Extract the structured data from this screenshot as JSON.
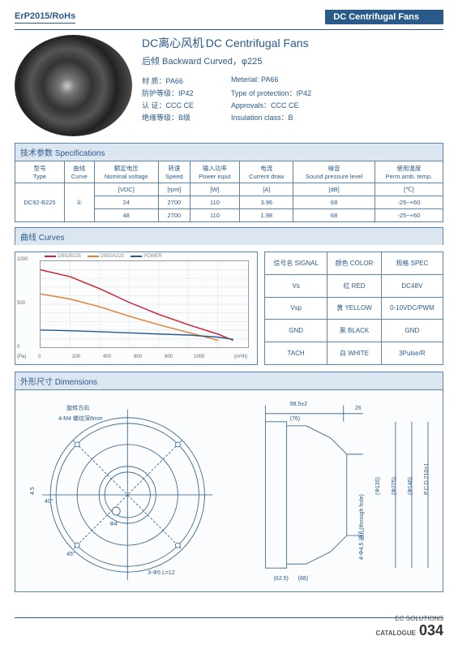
{
  "header": {
    "left": "ErP2015/RoHs",
    "right": "DC Centrifugal Fans"
  },
  "title": {
    "cn": "DC离心风机",
    "en": "DC Centrifugal Fans",
    "sub": "后倾 Backward Curved，φ225"
  },
  "props": {
    "rows": [
      {
        "cn": "材 质：PA66",
        "en": "Meterial: PA66"
      },
      {
        "cn": "防护等级：IP42",
        "en": "Type of protection：IP42"
      },
      {
        "cn": "认 证：CCC CE",
        "en": "Approvals：CCC CE"
      },
      {
        "cn": "绝缘等级：B级",
        "en": "Insulation class：B"
      }
    ]
  },
  "specsHeader": "技术参数 Specifications",
  "specCols": [
    {
      "l1": "型号",
      "l2": "Type"
    },
    {
      "l1": "曲线",
      "l2": "Curve"
    },
    {
      "l1": "额定电压",
      "l2": "Nominal voltage"
    },
    {
      "l1": "转速",
      "l2": "Speed"
    },
    {
      "l1": "输入功率",
      "l2": "Power input"
    },
    {
      "l1": "电流",
      "l2": "Current draw"
    },
    {
      "l1": "噪音",
      "l2": "Sound pressure level"
    },
    {
      "l1": "使用温度",
      "l2": "Perm.amb. temp."
    }
  ],
  "specUnits": [
    "[VDC]",
    "[rpm]",
    "[W]",
    "[A]",
    "[dB]",
    "[℃]"
  ],
  "specModel": "DC92-B225",
  "specCurve": "①",
  "specRows": [
    [
      "24",
      "2700",
      "110",
      "3.96",
      "68",
      "-25~+60"
    ],
    [
      "48",
      "2700",
      "110",
      "1.98",
      "68",
      "-25~+60"
    ]
  ],
  "curvesHeader": "曲线 Curves",
  "chart": {
    "type": "line",
    "xlim": [
      0,
      1400
    ],
    "ylim_left": [
      0,
      1000
    ],
    "ylim_right": [
      0,
      600
    ],
    "xtick_step": 200,
    "ytick_step": 100,
    "x_label": "(m³/h)",
    "y_label_left": "(Pa)",
    "y_label_right": "(W)",
    "background_color": "#fafcfe",
    "grid_color": "#dddddd",
    "series": [
      {
        "name": "DB92B225",
        "color": "#d02030",
        "x": [
          0,
          200,
          400,
          600,
          800,
          1000,
          1200,
          1300
        ],
        "y": [
          900,
          820,
          680,
          520,
          380,
          260,
          150,
          80
        ]
      },
      {
        "name": "DB92A220",
        "color": "#e08030",
        "x": [
          0,
          200,
          400,
          600,
          800,
          1000,
          1200
        ],
        "y": [
          620,
          560,
          470,
          360,
          260,
          170,
          80
        ]
      },
      {
        "name": "POWER",
        "color": "#2a5a8a",
        "x": [
          0,
          200,
          400,
          600,
          800,
          1000,
          1200,
          1300
        ],
        "y": [
          120,
          115,
          108,
          100,
          92,
          85,
          70,
          55
        ]
      }
    ]
  },
  "signal": {
    "cols": [
      "信号名 SIGNAL",
      "颜色 COLOR",
      "规格 SPEC"
    ],
    "rows": [
      [
        "Vs",
        "红 RED",
        "DC48V"
      ],
      [
        "Vsp",
        "黄 YELLOW",
        "0-10VDC/PWM"
      ],
      [
        "GND",
        "黑 BLACK",
        "GND"
      ],
      [
        "TACH",
        "白 WHITE",
        "3Pulse/R"
      ]
    ]
  },
  "dimHeader": "外形尺寸 Dimensions",
  "dims": {
    "labels": [
      "旋转方向",
      "4-M4 螺纹深6mm",
      "98.5±2",
      "(76)",
      "26",
      "(Φ135)",
      "(Φ225)",
      "(Φ146)",
      "P.C.D 210±1",
      "4-Φ4.5 通孔(through hole)",
      "(62.5)",
      "(88)",
      "45°",
      "4.5",
      "3-Φ5 L=12",
      "Φ4",
      "40°"
    ]
  },
  "footer": {
    "brand1": "EC SOLUTIONS",
    "brand2": "CATALOGUE",
    "page": "034"
  }
}
